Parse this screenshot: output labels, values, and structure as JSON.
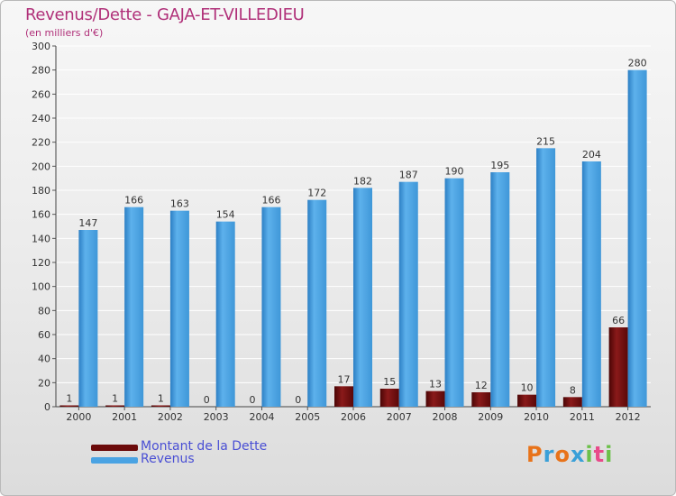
{
  "title": "Revenus/Dette - GAJA-ET-VILLEDIEU",
  "subtitle": "(en milliers d'€)",
  "logo": {
    "text": "Proxiti",
    "colors": [
      "#e8731a",
      "#3aa0d8",
      "#e8731a",
      "#3aa0d8",
      "#6cc04a",
      "#e84a8a",
      "#6cc04a"
    ]
  },
  "legend": [
    {
      "label": "Montant de la Dette",
      "color": "#6b0a0a"
    },
    {
      "label": "Revenus",
      "color": "#4aa3e3"
    }
  ],
  "colors": {
    "dette": "#7a1010",
    "revenus": "#4aa3e3",
    "grid": "#ffffff",
    "text": "#333333",
    "title": "#b03079"
  },
  "chart_data": {
    "type": "bar",
    "categories": [
      "2000",
      "2001",
      "2002",
      "2003",
      "2004",
      "2005",
      "2006",
      "2007",
      "2008",
      "2009",
      "2010",
      "2011",
      "2012"
    ],
    "series": [
      {
        "name": "Montant de la Dette",
        "values": [
          1,
          1,
          1,
          0,
          0,
          0,
          17,
          15,
          13,
          12,
          10,
          8,
          66
        ]
      },
      {
        "name": "Revenus",
        "values": [
          147,
          166,
          163,
          154,
          166,
          172,
          182,
          187,
          190,
          195,
          215,
          204,
          280
        ]
      }
    ],
    "ylim": [
      0,
      300
    ],
    "yticks": [
      0,
      20,
      40,
      60,
      80,
      100,
      120,
      140,
      160,
      180,
      200,
      220,
      240,
      260,
      280,
      300
    ],
    "grid": true
  }
}
